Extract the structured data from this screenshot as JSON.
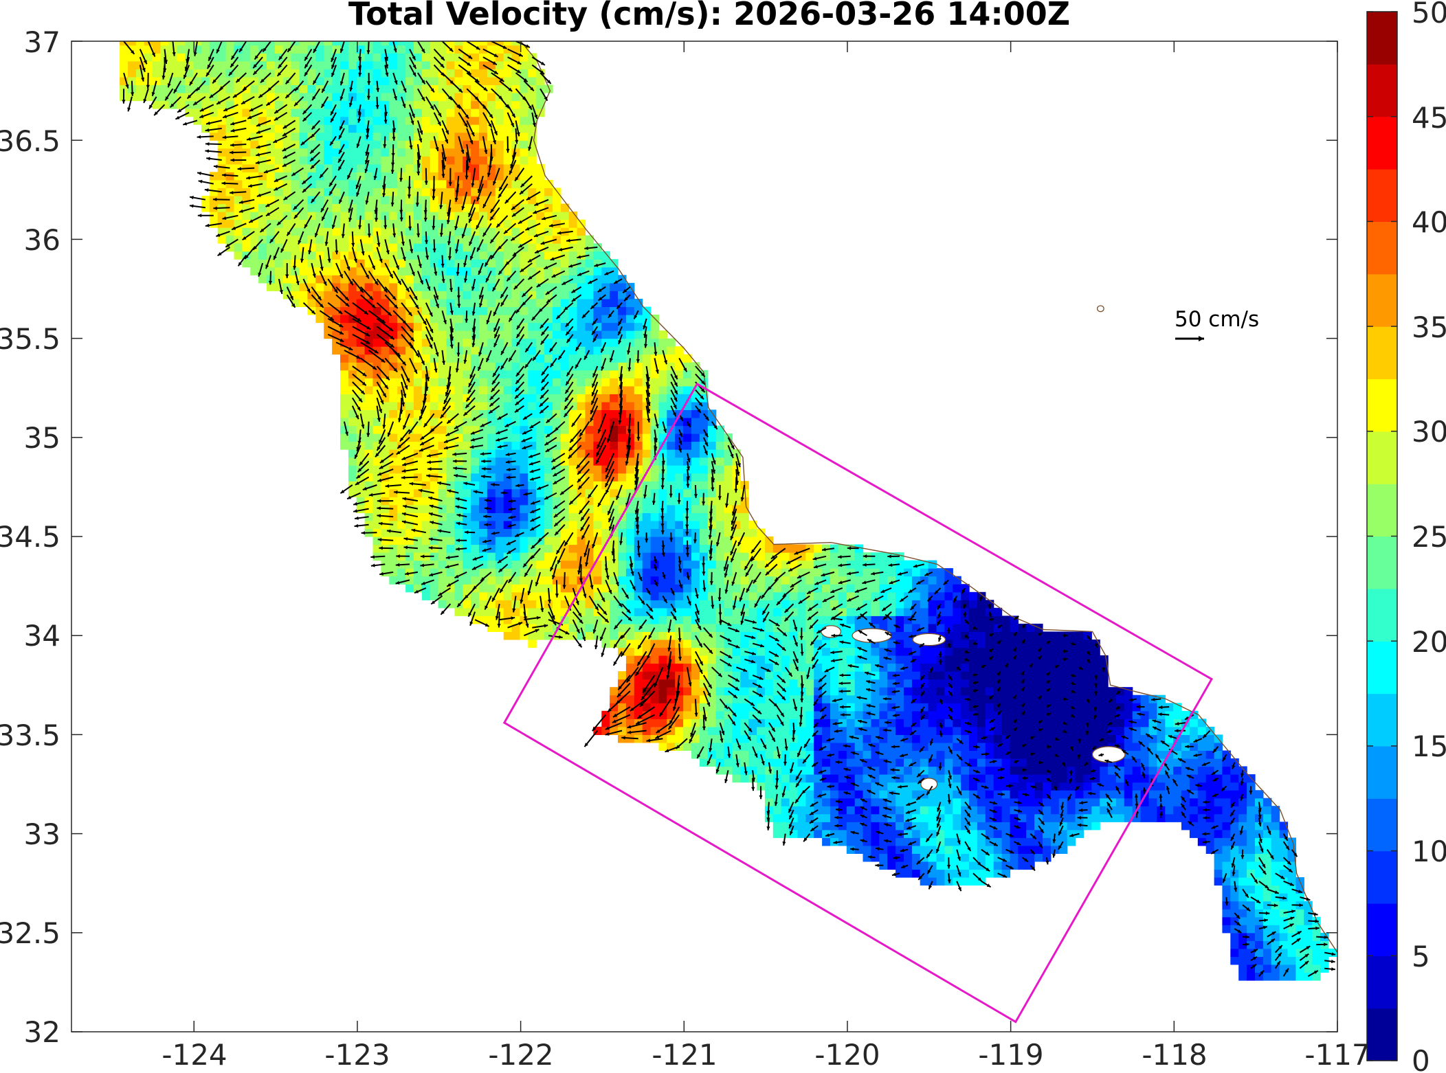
{
  "chart_data": {
    "type": "heatmap",
    "title": "Total Velocity (cm/s): 2026-03-26 14:00Z",
    "xlabel": "",
    "ylabel": "",
    "xlim": [
      -124.75,
      -117
    ],
    "ylim": [
      32,
      37
    ],
    "x_ticks": [
      "-124",
      "-123",
      "-122",
      "-121",
      "-120",
      "-119",
      "-118",
      "-117"
    ],
    "y_ticks": [
      "32",
      "32.5",
      "33",
      "33.5",
      "34",
      "34.5",
      "35",
      "35.5",
      "36",
      "36.5",
      "37"
    ],
    "colorbar": {
      "range": [
        0,
        50
      ],
      "ticks": [
        "0",
        "5",
        "10",
        "15",
        "20",
        "25",
        "30",
        "35",
        "40",
        "45",
        "50"
      ],
      "levels": 20,
      "colormap": "jet"
    },
    "scale_arrow": {
      "label": "50 cm/s",
      "value": 50
    },
    "grid": false,
    "box_color": "#e619c8",
    "box_corners": [
      [
        -120.92,
        35.27
      ],
      [
        -117.77,
        33.78
      ],
      [
        -118.97,
        32.05
      ],
      [
        -122.1,
        33.56
      ]
    ]
  }
}
